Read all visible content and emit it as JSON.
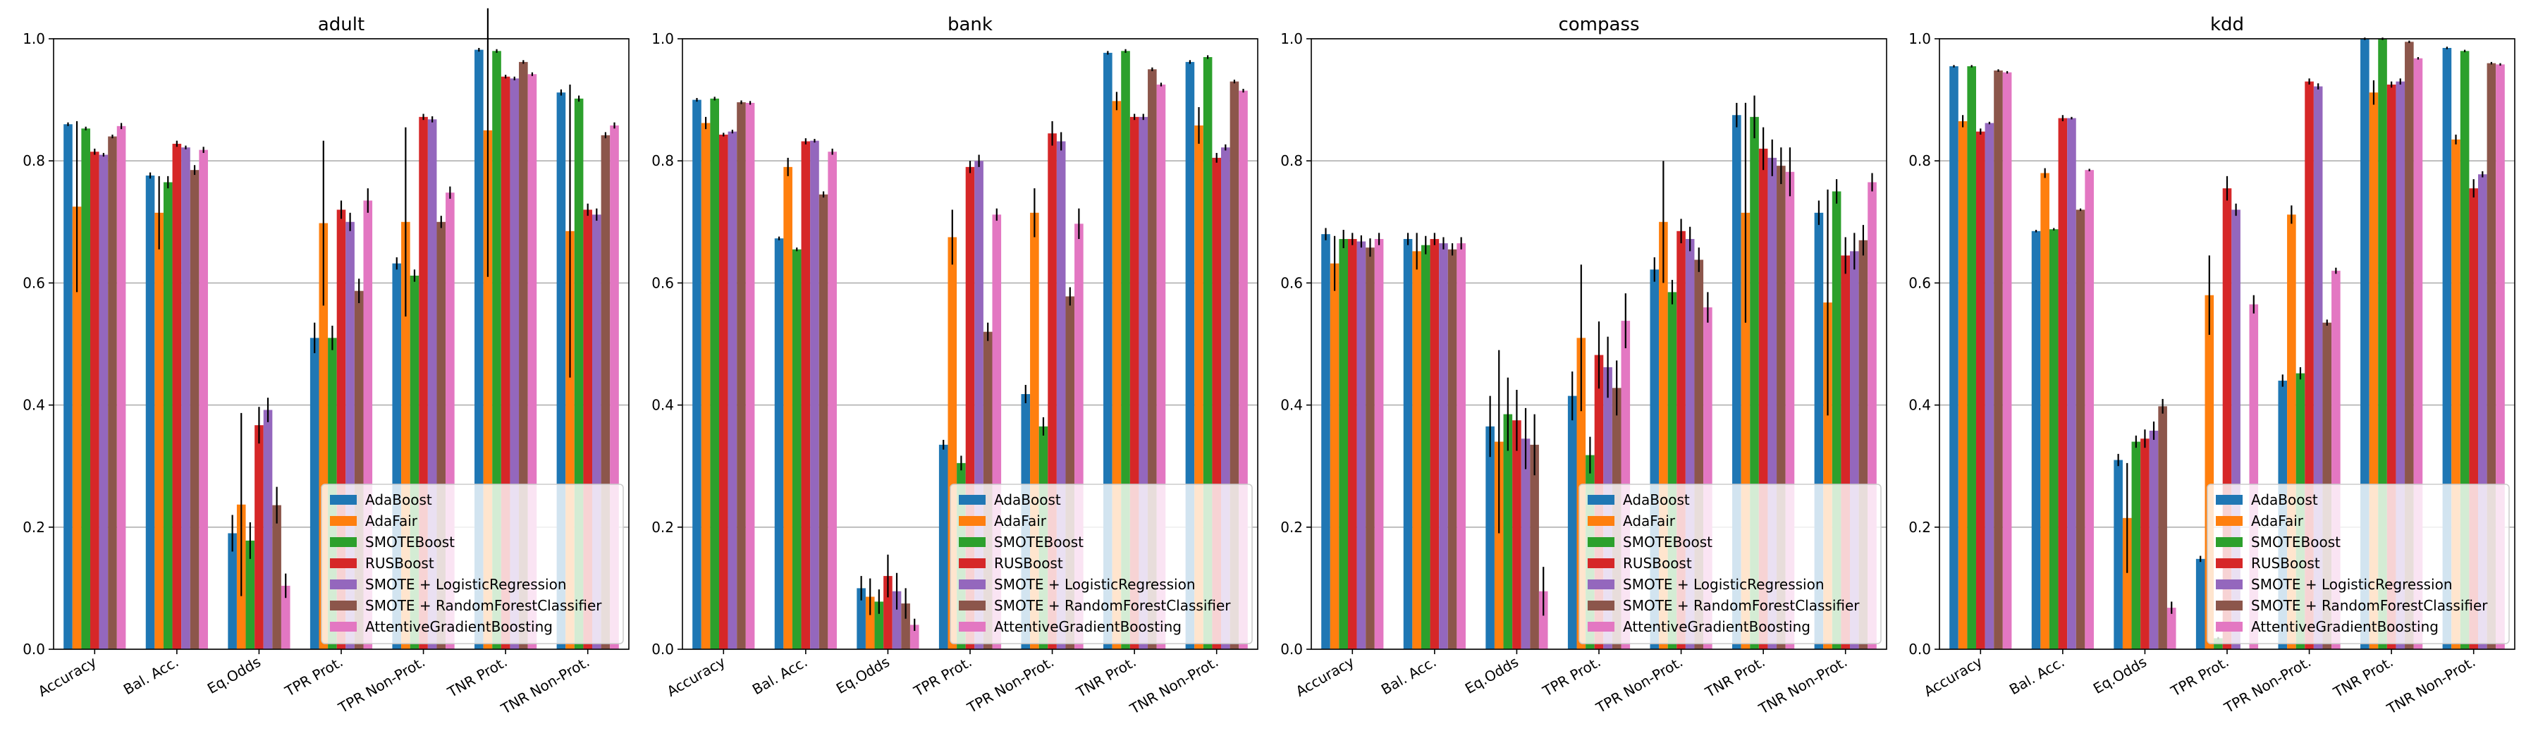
{
  "chart_data": {
    "type": "bar",
    "ylim": [
      0,
      1
    ],
    "yticks": [
      "0.0",
      "0.2",
      "0.4",
      "0.6",
      "0.8",
      "1.0"
    ],
    "grid": "horizontal",
    "legend_placement": "lower-right",
    "categories": [
      "Accuracy",
      "Bal. Acc.",
      "Eq.Odds",
      "TPR Prot.",
      "TPR Non-Prot.",
      "TNR Prot.",
      "TNR Non-Prot."
    ],
    "series_names": [
      "AdaBoost",
      "AdaFair",
      "SMOTEBoost",
      "RUSBoost",
      "SMOTE + LogisticRegression",
      "SMOTE + RandomForestClassifier",
      "AttentiveGradientBoosting"
    ],
    "colors": [
      "#1f77b4",
      "#ff7f0e",
      "#2ca02c",
      "#d62728",
      "#9467bd",
      "#8c564b",
      "#e377c2"
    ],
    "panels": [
      {
        "title": "adult",
        "values": [
          [
            0.86,
            0.725,
            0.853,
            0.815,
            0.81,
            0.84,
            0.857
          ],
          [
            0.776,
            0.715,
            0.765,
            0.828,
            0.822,
            0.785,
            0.818
          ],
          [
            0.19,
            0.237,
            0.178,
            0.367,
            0.392,
            0.236,
            0.104
          ],
          [
            0.51,
            0.698,
            0.51,
            0.72,
            0.7,
            0.587,
            0.735
          ],
          [
            0.632,
            0.7,
            0.612,
            0.872,
            0.868,
            0.7,
            0.748
          ],
          [
            0.982,
            0.85,
            0.98,
            0.938,
            0.935,
            0.962,
            0.942
          ],
          [
            0.912,
            0.685,
            0.902,
            0.72,
            0.712,
            0.842,
            0.858
          ]
        ],
        "errors": [
          [
            0.003,
            0.14,
            0.003,
            0.005,
            0.003,
            0.003,
            0.005
          ],
          [
            0.005,
            0.06,
            0.01,
            0.005,
            0.003,
            0.008,
            0.005
          ],
          [
            0.03,
            0.15,
            0.03,
            0.03,
            0.02,
            0.03,
            0.02
          ],
          [
            0.025,
            0.135,
            0.02,
            0.015,
            0.015,
            0.02,
            0.02
          ],
          [
            0.01,
            0.155,
            0.01,
            0.005,
            0.005,
            0.01,
            0.01
          ],
          [
            0.003,
            0.24,
            0.003,
            0.003,
            0.003,
            0.003,
            0.003
          ],
          [
            0.005,
            0.24,
            0.005,
            0.01,
            0.01,
            0.005,
            0.005
          ]
        ]
      },
      {
        "title": "bank",
        "values": [
          [
            0.9,
            0.862,
            0.902,
            0.843,
            0.848,
            0.896,
            0.895
          ],
          [
            0.673,
            0.79,
            0.655,
            0.832,
            0.833,
            0.745,
            0.815
          ],
          [
            0.1,
            0.086,
            0.078,
            0.12,
            0.095,
            0.075,
            0.04
          ],
          [
            0.335,
            0.675,
            0.305,
            0.79,
            0.8,
            0.52,
            0.712
          ],
          [
            0.418,
            0.715,
            0.365,
            0.845,
            0.832,
            0.578,
            0.697
          ],
          [
            0.977,
            0.898,
            0.98,
            0.872,
            0.872,
            0.95,
            0.925
          ],
          [
            0.962,
            0.858,
            0.97,
            0.805,
            0.822,
            0.93,
            0.915
          ]
        ],
        "errors": [
          [
            0.003,
            0.01,
            0.003,
            0.003,
            0.003,
            0.003,
            0.003
          ],
          [
            0.003,
            0.015,
            0.003,
            0.005,
            0.003,
            0.005,
            0.005
          ],
          [
            0.02,
            0.03,
            0.02,
            0.035,
            0.03,
            0.025,
            0.01
          ],
          [
            0.008,
            0.045,
            0.012,
            0.01,
            0.01,
            0.015,
            0.01
          ],
          [
            0.015,
            0.04,
            0.015,
            0.02,
            0.015,
            0.015,
            0.025
          ],
          [
            0.003,
            0.015,
            0.003,
            0.005,
            0.005,
            0.003,
            0.003
          ],
          [
            0.003,
            0.03,
            0.003,
            0.008,
            0.005,
            0.003,
            0.003
          ]
        ]
      },
      {
        "title": "compass",
        "values": [
          [
            0.68,
            0.632,
            0.672,
            0.672,
            0.668,
            0.658,
            0.672
          ],
          [
            0.672,
            0.652,
            0.662,
            0.672,
            0.665,
            0.655,
            0.665
          ],
          [
            0.365,
            0.34,
            0.385,
            0.375,
            0.345,
            0.335,
            0.095
          ],
          [
            0.415,
            0.51,
            0.318,
            0.482,
            0.462,
            0.428,
            0.538
          ],
          [
            0.622,
            0.7,
            0.585,
            0.685,
            0.672,
            0.638,
            0.56
          ],
          [
            0.875,
            0.715,
            0.872,
            0.82,
            0.805,
            0.792,
            0.782
          ],
          [
            0.715,
            0.568,
            0.75,
            0.645,
            0.652,
            0.67,
            0.765
          ]
        ],
        "errors": [
          [
            0.01,
            0.045,
            0.015,
            0.01,
            0.01,
            0.015,
            0.01
          ],
          [
            0.01,
            0.03,
            0.015,
            0.01,
            0.01,
            0.01,
            0.01
          ],
          [
            0.05,
            0.15,
            0.06,
            0.05,
            0.05,
            0.05,
            0.04
          ],
          [
            0.04,
            0.12,
            0.03,
            0.055,
            0.05,
            0.045,
            0.045
          ],
          [
            0.02,
            0.1,
            0.02,
            0.02,
            0.02,
            0.02,
            0.025
          ],
          [
            0.02,
            0.18,
            0.035,
            0.035,
            0.03,
            0.03,
            0.04
          ],
          [
            0.02,
            0.185,
            0.02,
            0.03,
            0.03,
            0.025,
            0.015
          ]
        ]
      },
      {
        "title": "kdd",
        "values": [
          [
            0.955,
            0.865,
            0.955,
            0.848,
            0.862,
            0.948,
            0.945
          ],
          [
            0.685,
            0.78,
            0.688,
            0.87,
            0.87,
            0.72,
            0.785
          ],
          [
            0.31,
            0.215,
            0.34,
            0.345,
            0.358,
            0.398,
            0.068
          ],
          [
            0.148,
            0.58,
            0.018,
            0.755,
            0.72,
            0.0,
            0.565
          ],
          [
            0.44,
            0.712,
            0.452,
            0.93,
            0.922,
            0.535,
            0.62
          ],
          [
            1.0,
            0.912,
            1.0,
            0.925,
            0.93,
            0.995,
            0.968
          ],
          [
            0.985,
            0.835,
            0.98,
            0.755,
            0.778,
            0.96,
            0.958
          ]
        ],
        "errors": [
          [
            0.002,
            0.01,
            0.002,
            0.005,
            0.002,
            0.002,
            0.002
          ],
          [
            0.002,
            0.008,
            0.002,
            0.005,
            0.002,
            0.002,
            0.002
          ],
          [
            0.01,
            0.09,
            0.01,
            0.015,
            0.015,
            0.012,
            0.01
          ],
          [
            0.005,
            0.065,
            0.002,
            0.02,
            0.01,
            0.0,
            0.015
          ],
          [
            0.01,
            0.015,
            0.01,
            0.005,
            0.005,
            0.005,
            0.005
          ],
          [
            0.002,
            0.02,
            0.002,
            0.005,
            0.005,
            0.002,
            0.002
          ],
          [
            0.002,
            0.008,
            0.002,
            0.015,
            0.005,
            0.002,
            0.002
          ]
        ]
      }
    ]
  }
}
